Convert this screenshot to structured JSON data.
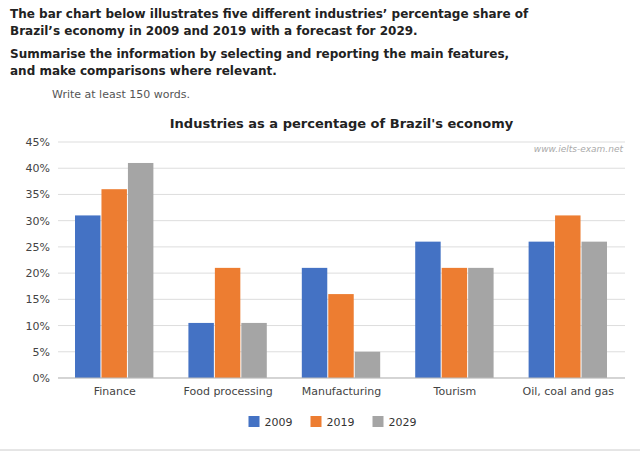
{
  "chart_data": {
    "type": "bar",
    "title": "Industries as a percentage of Brazil's economy",
    "annotations": [
      "The bar chart below illustrates five different industries’ percentage share of",
      "Brazil’s economy in 2009 and 2019 with a forecast for 2029.",
      "Summarise the information by selecting and reporting the main features,",
      "and make comparisons where relevant.",
      "Write at least 150 words.",
      "www.ielts-exam.net"
    ],
    "categories": [
      "Finance",
      "Food processing",
      "Manufacturing",
      "Tourism",
      "Oil, coal and gas"
    ],
    "series": [
      {
        "name": "2009",
        "color": "#4472C4",
        "values": [
          31,
          10.5,
          21,
          26,
          26
        ]
      },
      {
        "name": "2019",
        "color": "#ED7D31",
        "values": [
          36,
          21,
          16,
          21,
          31
        ]
      },
      {
        "name": "2029",
        "color": "#A5A5A5",
        "values": [
          41,
          10.5,
          5,
          21,
          26
        ]
      }
    ],
    "ylim": [
      0,
      45
    ],
    "yticks": [
      {
        "value": 0,
        "label": "0%"
      },
      {
        "value": 5,
        "label": "5%"
      },
      {
        "value": 10,
        "label": "10%"
      },
      {
        "value": 15,
        "label": "15%"
      },
      {
        "value": 20,
        "label": "20%"
      },
      {
        "value": 25,
        "label": "25%"
      },
      {
        "value": 30,
        "label": "30%"
      },
      {
        "value": 35,
        "label": "35%"
      },
      {
        "value": 40,
        "label": "40%"
      },
      {
        "value": 45,
        "label": "45%"
      }
    ],
    "grid": true,
    "legend": "bottom"
  }
}
